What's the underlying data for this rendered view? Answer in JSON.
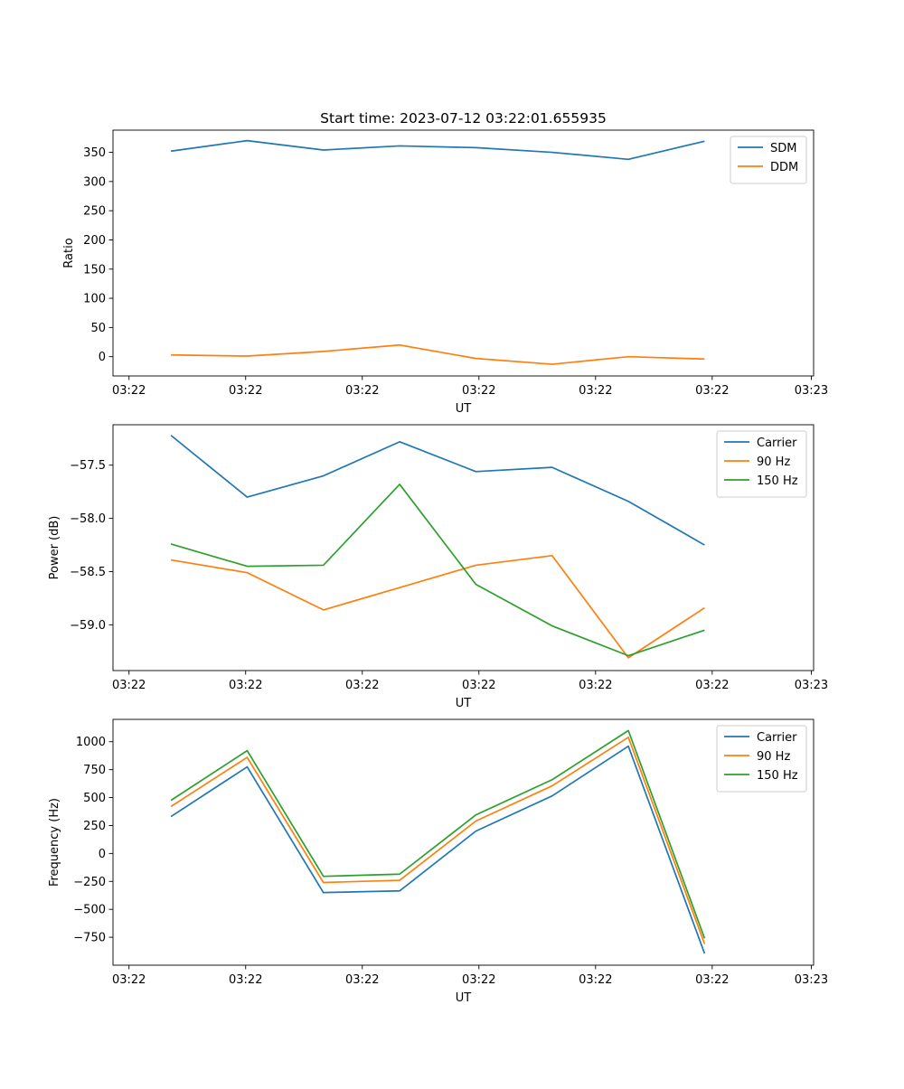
{
  "figure": {
    "title": "Start time: 2023-07-12 03:22:01.655935"
  },
  "colors": {
    "c0": "#1f77b4",
    "c1": "#ff7f0e",
    "c2": "#2ca02c"
  },
  "chart_data": [
    {
      "type": "line",
      "title": "Start time: 2023-07-12 03:22:01.655935",
      "xlabel": "UT",
      "ylabel": "Ratio",
      "x_index_range": [
        -0.76,
        8.43
      ],
      "x_tick_positions": [
        -0.55,
        0.98,
        2.51,
        4.04,
        5.57,
        7.1,
        8.4
      ],
      "x_tick_labels": [
        "03:22",
        "03:22",
        "03:22",
        "03:22",
        "03:22",
        "03:22",
        "03:23"
      ],
      "ylim": [
        -33,
        388
      ],
      "y_ticks": [
        0,
        50,
        100,
        150,
        200,
        250,
        300,
        350
      ],
      "y_tick_labels": [
        "0",
        "50",
        "100",
        "150",
        "200",
        "250",
        "300",
        "350"
      ],
      "legend": "top-right",
      "series": [
        {
          "name": "SDM",
          "color": "#1f77b4",
          "values": [
            352,
            370,
            354,
            361,
            358,
            350,
            338,
            369
          ]
        },
        {
          "name": "DDM",
          "color": "#ff7f0e",
          "values": [
            3,
            1,
            9,
            20,
            -3,
            -13,
            0,
            -4
          ]
        }
      ]
    },
    {
      "type": "line",
      "title": "",
      "xlabel": "UT",
      "ylabel": "Power (dB)",
      "x_index_range": [
        -0.76,
        8.43
      ],
      "x_tick_positions": [
        -0.55,
        0.98,
        2.51,
        4.04,
        5.57,
        7.1,
        8.4
      ],
      "x_tick_labels": [
        "03:22",
        "03:22",
        "03:22",
        "03:22",
        "03:22",
        "03:22",
        "03:23"
      ],
      "ylim": [
        -59.43,
        -57.12
      ],
      "y_ticks": [
        -59.0,
        -58.5,
        -58.0,
        -57.5
      ],
      "y_tick_labels": [
        "−59.0",
        "−58.5",
        "−58.0",
        "−57.5"
      ],
      "legend": "top-right",
      "series": [
        {
          "name": "Carrier",
          "color": "#1f77b4",
          "values": [
            -57.22,
            -57.8,
            -57.6,
            -57.28,
            -57.56,
            -57.52,
            -57.84,
            -58.25
          ]
        },
        {
          "name": "90 Hz",
          "color": "#ff7f0e",
          "values": [
            -58.39,
            -58.51,
            -58.86,
            -58.65,
            -58.44,
            -58.35,
            -59.31,
            -58.84
          ]
        },
        {
          "name": "150 Hz",
          "color": "#2ca02c",
          "values": [
            -58.24,
            -58.45,
            -58.44,
            -57.68,
            -58.62,
            -59.01,
            -59.29,
            -59.05
          ]
        }
      ]
    },
    {
      "type": "line",
      "title": "",
      "xlabel": "UT",
      "ylabel": "Frequency (Hz)",
      "x_index_range": [
        -0.76,
        8.43
      ],
      "x_tick_positions": [
        -0.55,
        0.98,
        2.51,
        4.04,
        5.57,
        7.1,
        8.4
      ],
      "x_tick_labels": [
        "03:22",
        "03:22",
        "03:22",
        "03:22",
        "03:22",
        "03:22",
        "03:23"
      ],
      "ylim": [
        -1000,
        1200
      ],
      "y_ticks": [
        -750,
        -500,
        -250,
        0,
        250,
        500,
        750,
        1000
      ],
      "y_tick_labels": [
        "−750",
        "−500",
        "−250",
        "0",
        "250",
        "500",
        "750",
        "1000"
      ],
      "legend": "top-right",
      "series": [
        {
          "name": "Carrier",
          "color": "#1f77b4",
          "values": [
            330,
            775,
            -350,
            -335,
            200,
            515,
            960,
            -895
          ]
        },
        {
          "name": "90 Hz",
          "color": "#ff7f0e",
          "values": [
            420,
            860,
            -260,
            -240,
            290,
            605,
            1040,
            -810
          ]
        },
        {
          "name": "150 Hz",
          "color": "#2ca02c",
          "values": [
            475,
            920,
            -205,
            -185,
            345,
            660,
            1100,
            -760
          ]
        }
      ]
    }
  ]
}
